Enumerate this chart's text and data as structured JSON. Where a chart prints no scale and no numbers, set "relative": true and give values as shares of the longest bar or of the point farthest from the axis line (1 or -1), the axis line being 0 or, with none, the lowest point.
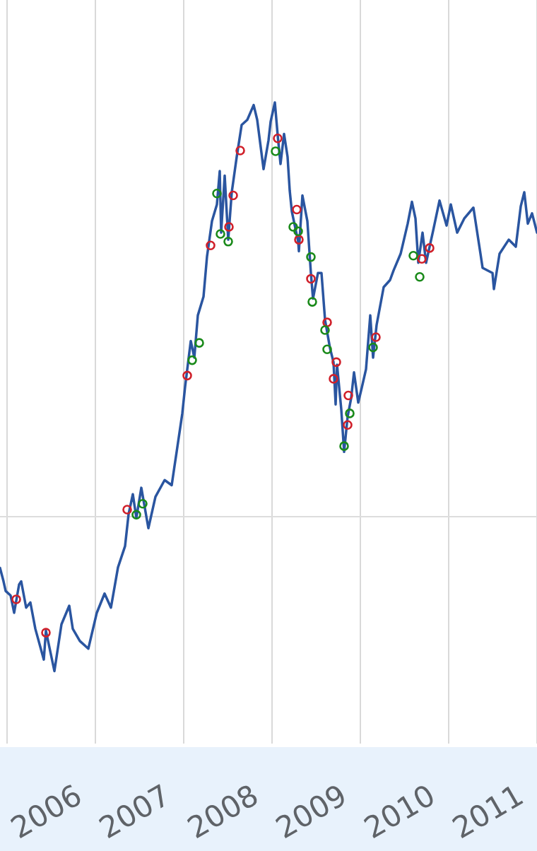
{
  "chart_data": {
    "type": "line",
    "relative": true,
    "xlim": [
      2004.92,
      2011.0
    ],
    "xticks": [
      {
        "value": 2005,
        "label": null
      },
      2006,
      2007,
      2008,
      2009,
      2010,
      2011
    ],
    "grid": "x",
    "ref_lines": [
      {
        "axis": "y",
        "value": 0.354,
        "label": null,
        "color": "#dddddd"
      }
    ],
    "series": [
      {
        "color": "#2a55a0",
        "marker": "none",
        "x": [
          2004.92,
          2004.96,
          2004.984,
          2005.04,
          2005.08,
          2005.136,
          2005.16,
          2005.216,
          2005.264,
          2005.32,
          2005.416,
          2005.44,
          2005.536,
          2005.616,
          2005.704,
          2005.744,
          2005.824,
          2005.92,
          2006.016,
          2006.104,
          2006.176,
          2006.256,
          2006.336,
          2006.376,
          2006.424,
          2006.464,
          2006.52,
          2006.6,
          2006.68,
          2006.784,
          2006.864,
          2006.896,
          2006.92,
          2006.984,
          2007.016,
          2007.08,
          2007.12,
          2007.16,
          2007.224,
          2007.264,
          2007.32,
          2007.376,
          2007.408,
          2007.424,
          2007.464,
          2007.504,
          2007.544,
          2007.6,
          2007.656,
          2007.72,
          2007.792,
          2007.832,
          2007.904,
          2007.96,
          2007.984,
          2008.032,
          2008.064,
          2008.096,
          2008.136,
          2008.176,
          2008.2,
          2008.224,
          2008.296,
          2008.304,
          2008.344,
          2008.4,
          2008.44,
          2008.464,
          2008.52,
          2008.56,
          2008.6,
          2008.656,
          2008.696,
          2008.72,
          2008.736,
          2008.784,
          2008.816,
          2008.856,
          2008.896,
          2008.928,
          2008.976,
          2009.016,
          2009.064,
          2009.112,
          2009.144,
          2009.184,
          2009.264,
          2009.336,
          2009.376,
          2009.456,
          2009.536,
          2009.584,
          2009.624,
          2009.656,
          2009.704,
          2009.744,
          2009.824,
          2009.896,
          2009.976,
          2010.024,
          2010.096,
          2010.176,
          2010.28,
          2010.36,
          2010.384,
          2010.496,
          2010.512,
          2010.576,
          2010.68,
          2010.76,
          2010.816,
          2010.856,
          2010.896,
          2010.944,
          2011.0
        ],
        "values": [
          0.274,
          0.253,
          0.238,
          0.231,
          0.204,
          0.248,
          0.253,
          0.212,
          0.22,
          0.179,
          0.131,
          0.176,
          0.113,
          0.186,
          0.215,
          0.179,
          0.16,
          0.148,
          0.204,
          0.234,
          0.212,
          0.275,
          0.308,
          0.358,
          0.389,
          0.352,
          0.399,
          0.336,
          0.385,
          0.411,
          0.403,
          0.433,
          0.455,
          0.515,
          0.557,
          0.628,
          0.602,
          0.668,
          0.697,
          0.76,
          0.815,
          0.841,
          0.893,
          0.797,
          0.886,
          0.786,
          0.86,
          0.915,
          0.965,
          0.973,
          0.996,
          0.973,
          0.896,
          0.941,
          0.97,
          1.0,
          0.949,
          0.904,
          0.951,
          0.915,
          0.863,
          0.83,
          0.783,
          0.768,
          0.855,
          0.815,
          0.734,
          0.694,
          0.734,
          0.734,
          0.661,
          0.617,
          0.595,
          0.529,
          0.591,
          0.521,
          0.455,
          0.51,
          0.539,
          0.579,
          0.532,
          0.555,
          0.584,
          0.668,
          0.602,
          0.653,
          0.712,
          0.723,
          0.738,
          0.764,
          0.811,
          0.845,
          0.819,
          0.75,
          0.797,
          0.75,
          0.8,
          0.847,
          0.808,
          0.841,
          0.797,
          0.819,
          0.836,
          0.764,
          0.742,
          0.734,
          0.709,
          0.764,
          0.786,
          0.775,
          0.838,
          0.86,
          0.811,
          0.827,
          0.797
        ]
      },
      {
        "type": "scatter",
        "color": "#d0202a",
        "marker": "circle",
        "x": [
          2005.104,
          2005.44,
          2006.36,
          2007.04,
          2007.304,
          2007.512,
          2007.56,
          2007.64,
          2008.064,
          2008.28,
          2008.304,
          2008.44,
          2008.624,
          2008.728,
          2008.696,
          2008.864,
          2008.856,
          2009.176,
          2009.696,
          2009.784
        ],
        "values": [
          0.225,
          0.173,
          0.365,
          0.574,
          0.777,
          0.806,
          0.855,
          0.925,
          0.944,
          0.833,
          0.786,
          0.725,
          0.657,
          0.595,
          0.569,
          0.543,
          0.497,
          0.634,
          0.756,
          0.773
        ]
      },
      {
        "type": "scatter",
        "color": "#1a8a1a",
        "marker": "circle",
        "x": [
          2006.464,
          2006.536,
          2007.096,
          2007.176,
          2007.376,
          2007.416,
          2007.504,
          2008.04,
          2008.24,
          2008.296,
          2008.44,
          2008.456,
          2008.6,
          2008.624,
          2008.88,
          2008.816,
          2009.144,
          2009.6,
          2009.672
        ],
        "values": [
          0.357,
          0.374,
          0.598,
          0.625,
          0.858,
          0.795,
          0.783,
          0.924,
          0.806,
          0.799,
          0.759,
          0.689,
          0.645,
          0.615,
          0.515,
          0.464,
          0.618,
          0.761,
          0.728
        ]
      }
    ]
  }
}
